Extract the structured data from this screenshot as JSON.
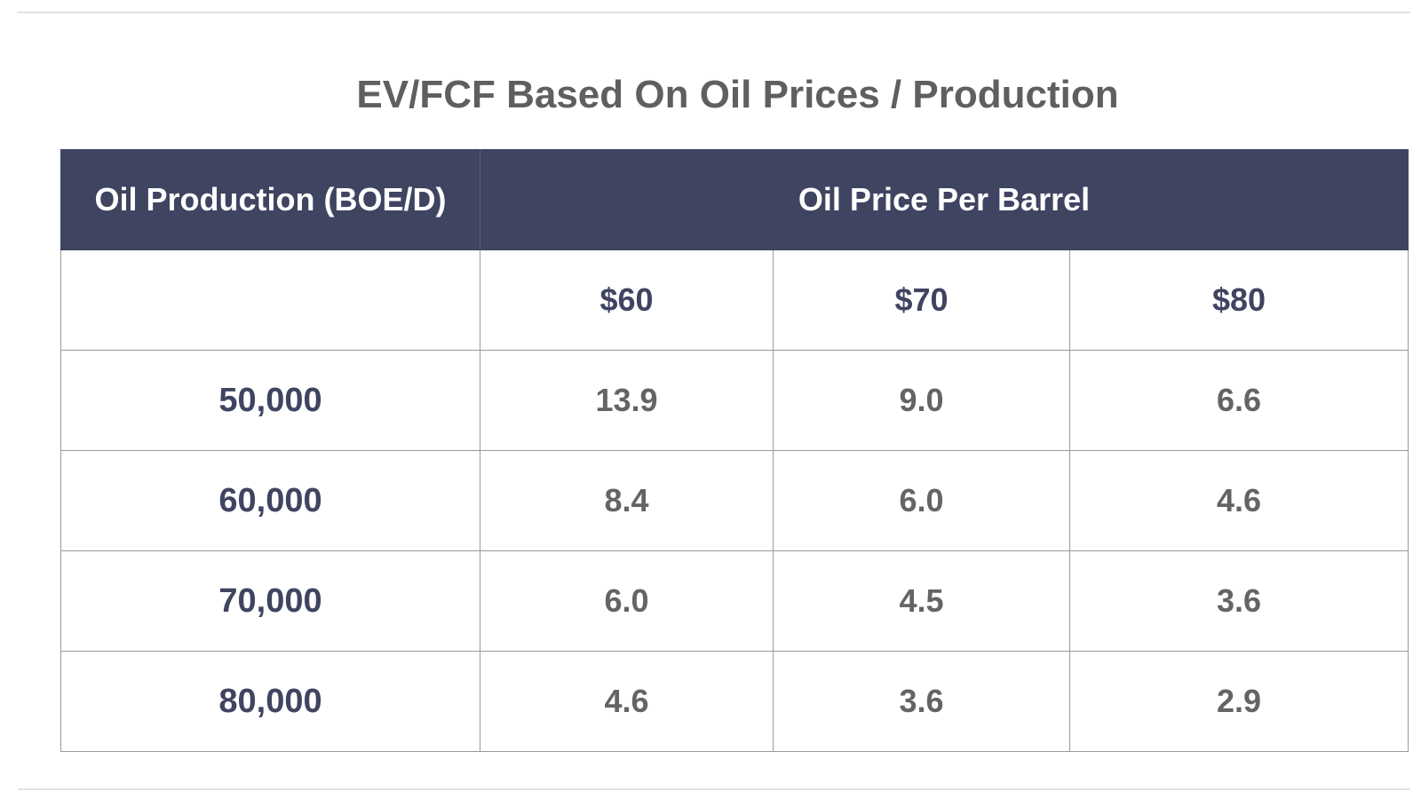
{
  "title": "EV/FCF Based On Oil Prices / Production",
  "chart_data": {
    "type": "table",
    "title": "EV/FCF Based On Oil Prices / Production",
    "row_header": "Oil Production (BOE/D)",
    "column_group_header": "Oil Price Per Barrel",
    "columns": [
      "$60",
      "$70",
      "$80"
    ],
    "rows": [
      {
        "production": "50,000",
        "values": [
          "13.9",
          "9.0",
          "6.6"
        ]
      },
      {
        "production": "60,000",
        "values": [
          "8.4",
          "6.0",
          "4.6"
        ]
      },
      {
        "production": "70,000",
        "values": [
          "6.0",
          "4.5",
          "3.6"
        ]
      },
      {
        "production": "80,000",
        "values": [
          "4.6",
          "3.6",
          "2.9"
        ]
      }
    ]
  },
  "colors": {
    "header_bg": "#3f4461",
    "header_text": "#ffffff",
    "accent_text": "#3f4461",
    "value_text": "#646464",
    "title_text": "#5f5f5f"
  }
}
